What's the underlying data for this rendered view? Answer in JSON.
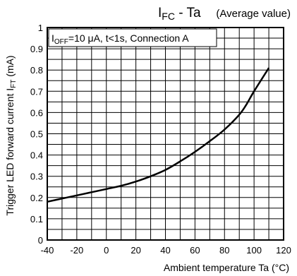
{
  "chart_data": {
    "type": "line",
    "title": "I",
    "title_sub": "FC",
    "title_rest": " - Ta",
    "subtitle": "(Average value)",
    "xlabel": "Ambient temperature Ta (°C)",
    "ylabel_main": "Trigger LED forward current I",
    "ylabel_sub": "FT",
    "ylabel_unit": " (mA)",
    "xlim": [
      -40,
      120
    ],
    "ylim": [
      0,
      1
    ],
    "x_ticks": [
      -40,
      -20,
      0,
      20,
      40,
      60,
      80,
      100,
      120
    ],
    "y_ticks": [
      0,
      0.1,
      0.2,
      0.3,
      0.4,
      0.5,
      0.6,
      0.7,
      0.8,
      0.9,
      1
    ],
    "grid": true,
    "annotation": {
      "pre": "I",
      "sub": "OFF",
      "post": "=10 μA, t<1s, Connection A"
    },
    "series": [
      {
        "x": [
          -40,
          -30,
          -20,
          -10,
          0,
          10,
          20,
          30,
          40,
          50,
          60,
          70,
          80,
          90,
          95,
          100,
          110
        ],
        "y": [
          0.18,
          0.195,
          0.21,
          0.225,
          0.24,
          0.255,
          0.275,
          0.3,
          0.33,
          0.37,
          0.415,
          0.465,
          0.52,
          0.59,
          0.64,
          0.7,
          0.81
        ]
      }
    ]
  }
}
